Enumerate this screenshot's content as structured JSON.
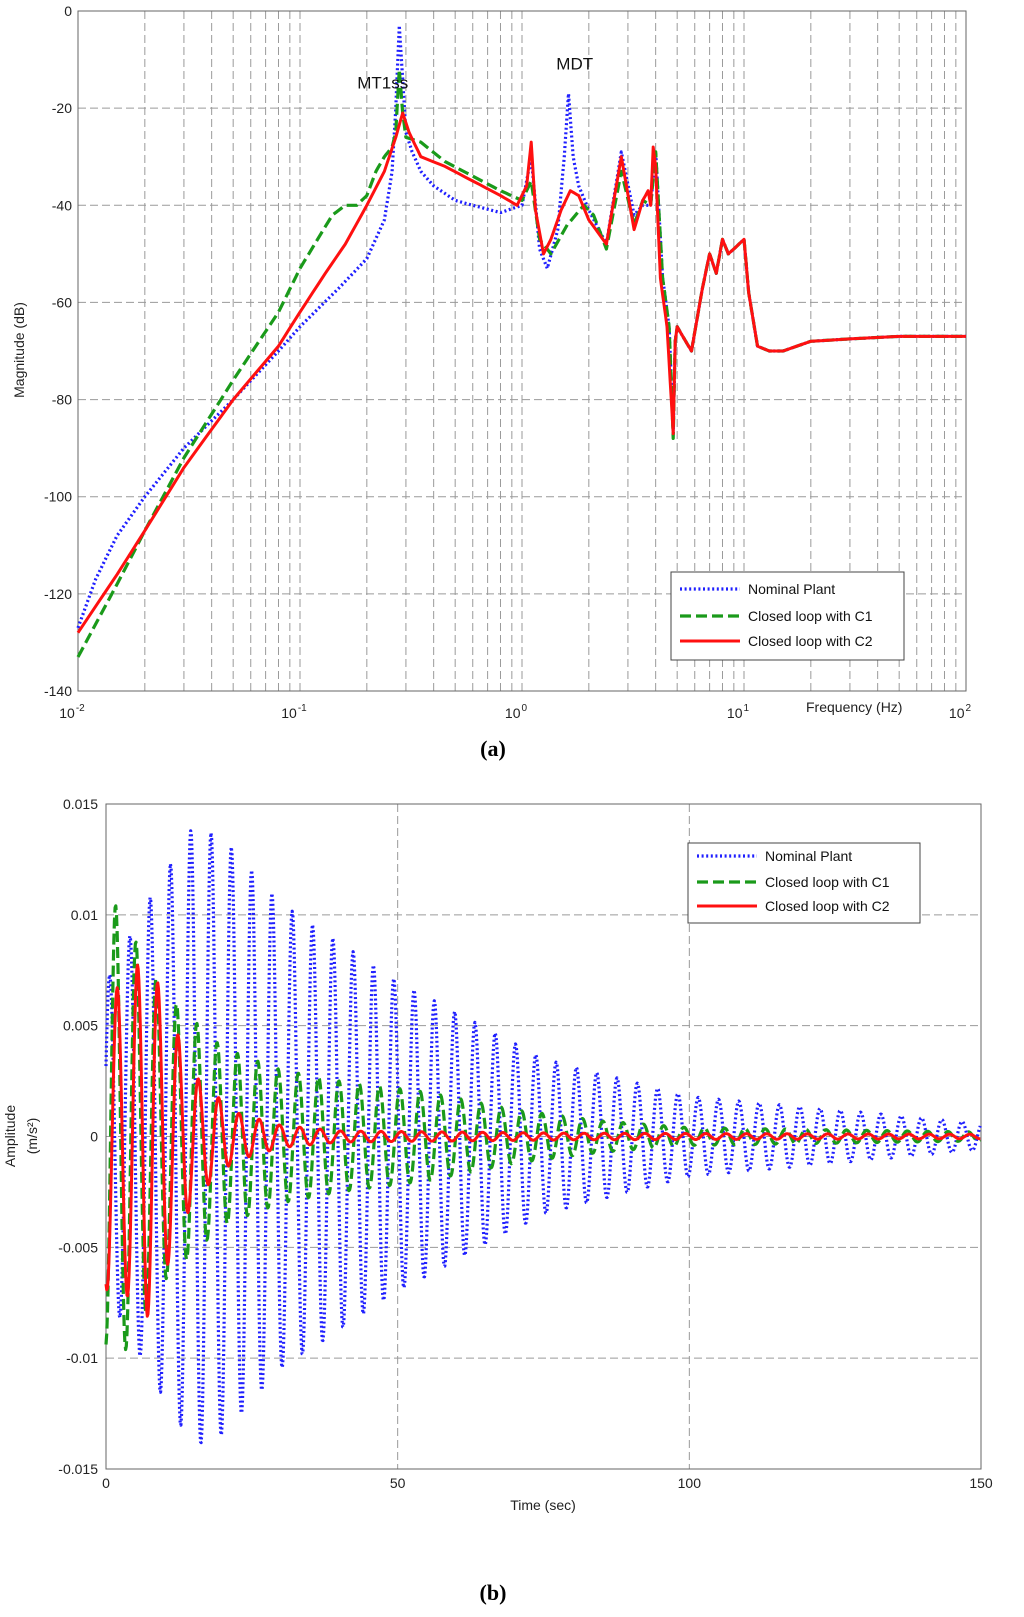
{
  "colors": {
    "nominal": "#1f1fff",
    "c1": "#1a9a1a",
    "c2": "#ff1010"
  },
  "chart_data": [
    {
      "type": "line",
      "panel_label": "(a)",
      "xscale": "log",
      "xlabel": "Frequency  (Hz)",
      "ylabel": "Magnitude (dB)",
      "xlim": [
        0.01,
        100
      ],
      "ylim": [
        -140,
        0
      ],
      "x_ticks": [
        {
          "base": "10",
          "exp": "-2"
        },
        {
          "base": "10",
          "exp": "-1"
        },
        {
          "base": "10",
          "exp": "0"
        },
        {
          "base": "10",
          "exp": "1"
        },
        {
          "base": "10",
          "exp": "2"
        }
      ],
      "y_ticks": [
        "0",
        "-20",
        "-40",
        "-60",
        "-80",
        "-100",
        "-120",
        "-140"
      ],
      "annotations": [
        {
          "text": "MT1ss",
          "x": 0.28,
          "y": -16
        },
        {
          "text": "MDT",
          "x": 1.65,
          "y": -12
        }
      ],
      "legend": {
        "position": "bottom-right",
        "entries": [
          "Nominal Plant",
          "Closed loop with C1",
          "Closed loop with C2"
        ]
      },
      "series": [
        {
          "name": "Nominal Plant",
          "style": "dotted",
          "x": [
            0.01,
            0.012,
            0.015,
            0.02,
            0.03,
            0.05,
            0.08,
            0.1,
            0.15,
            0.2,
            0.24,
            0.26,
            0.27,
            0.28,
            0.29,
            0.3,
            0.32,
            0.35,
            0.4,
            0.5,
            0.6,
            0.8,
            1.0,
            1.1,
            1.2,
            1.3,
            1.45,
            1.55,
            1.62,
            1.7,
            1.8,
            2.0,
            2.4,
            2.8,
            3.2,
            3.5,
            3.8,
            4.0,
            4.3,
            4.6,
            4.8,
            4.9,
            5.0,
            5.3,
            5.8,
            6.5,
            7.0,
            7.5,
            8.0,
            8.5,
            9.0,
            10.0,
            10.5,
            11.5,
            13,
            15,
            20,
            30,
            50,
            100
          ],
          "y": [
            -127,
            -117,
            -108,
            -100,
            -90,
            -80,
            -70,
            -65,
            -57,
            -51,
            -43,
            -33,
            -20,
            -3,
            -14,
            -25,
            -29,
            -33,
            -36,
            -39,
            -40,
            -41.5,
            -40,
            -30,
            -49,
            -53,
            -45,
            -30,
            -17,
            -30,
            -36,
            -41,
            -48,
            -29,
            -42,
            -40,
            -40,
            -29,
            -55,
            -65,
            -87,
            -68,
            -65,
            -67,
            -70,
            -57,
            -50,
            -54,
            -47,
            -50,
            -49,
            -47,
            -58,
            -69,
            -70,
            -70,
            -68,
            -67.5,
            -67,
            -67
          ]
        },
        {
          "name": "Closed loop with C1",
          "style": "dashed",
          "x": [
            0.01,
            0.015,
            0.02,
            0.03,
            0.05,
            0.08,
            0.1,
            0.12,
            0.14,
            0.16,
            0.18,
            0.2,
            0.22,
            0.24,
            0.26,
            0.27,
            0.28,
            0.29,
            0.3,
            0.35,
            0.45,
            0.6,
            0.8,
            1.0,
            1.1,
            1.2,
            1.35,
            1.6,
            1.9,
            2.1,
            2.4,
            2.8,
            3.2,
            3.5,
            3.8,
            4.0,
            4.3,
            4.6,
            4.8,
            4.9,
            5.0,
            5.3,
            5.8,
            6.5,
            7.0,
            7.5,
            8.0,
            8.5,
            9.0,
            10.0,
            10.5,
            11.5,
            13,
            15,
            20,
            30,
            50,
            100
          ],
          "y": [
            -133,
            -118,
            -107,
            -92,
            -76,
            -62,
            -53,
            -47,
            -42,
            -40,
            -40,
            -38,
            -33,
            -30,
            -28,
            -25,
            -12,
            -21,
            -26,
            -27,
            -31,
            -34,
            -37,
            -39,
            -35,
            -47,
            -50,
            -44,
            -40,
            -42,
            -49,
            -33,
            -44,
            -39,
            -40,
            -29,
            -55,
            -65,
            -88,
            -68,
            -65,
            -67,
            -70,
            -57,
            -50,
            -54,
            -47,
            -50,
            -49,
            -47,
            -58,
            -69,
            -70,
            -70,
            -68,
            -67.5,
            -67,
            -67
          ]
        },
        {
          "name": "Closed loop with C2",
          "style": "solid",
          "x": [
            0.01,
            0.015,
            0.02,
            0.03,
            0.05,
            0.08,
            0.1,
            0.13,
            0.16,
            0.2,
            0.24,
            0.27,
            0.29,
            0.31,
            0.35,
            0.45,
            0.6,
            0.8,
            0.95,
            1.05,
            1.1,
            1.15,
            1.25,
            1.35,
            1.5,
            1.65,
            1.8,
            2.0,
            2.4,
            2.8,
            3.2,
            3.5,
            3.7,
            3.8,
            3.9,
            4.0,
            4.2,
            4.5,
            4.8,
            4.9,
            5.0,
            5.3,
            5.8,
            6.5,
            7.0,
            7.5,
            8.0,
            8.5,
            9.0,
            10.0,
            10.5,
            11.5,
            13,
            15,
            20,
            30,
            50,
            100
          ],
          "y": [
            -128,
            -116,
            -107,
            -94,
            -80,
            -69,
            -62,
            -54,
            -48,
            -40,
            -33,
            -26,
            -21,
            -25,
            -30,
            -32,
            -35,
            -38,
            -40,
            -36,
            -27,
            -41,
            -50,
            -47,
            -41,
            -37,
            -38,
            -43,
            -48,
            -30,
            -45,
            -39,
            -37,
            -40,
            -28,
            -32,
            -55,
            -65,
            -87,
            -68,
            -65,
            -67,
            -70,
            -57,
            -50,
            -54,
            -47,
            -50,
            -49,
            -47,
            -58,
            -69,
            -70,
            -70,
            -68,
            -67.5,
            -67,
            -67
          ]
        }
      ]
    },
    {
      "type": "line",
      "panel_label": "(b)",
      "xlabel": "Time (sec)",
      "ylabel": "Amplitude",
      "ylabel_unit": "(m/s²)",
      "xlim": [
        0,
        150
      ],
      "ylim": [
        -0.015,
        0.015
      ],
      "x_ticks": [
        "0",
        "50",
        "100",
        "150"
      ],
      "y_ticks": [
        "0.015",
        "0.01",
        "0.005",
        "0",
        "-0.005",
        "-0.01",
        "-0.015"
      ],
      "legend": {
        "position": "top-right",
        "entries": [
          "Nominal Plant",
          "Closed loop with C1",
          "Closed loop with C2"
        ]
      },
      "series": [
        {
          "name": "Nominal Plant",
          "style": "dotted",
          "model": "damped_oscillation",
          "period_s": 3.48,
          "envelope_time_s": [
            0,
            3,
            8,
            15,
            20,
            30,
            50,
            75,
            100,
            150
          ],
          "envelope": [
            0.007,
            0.0085,
            0.011,
            0.014,
            0.0135,
            0.0105,
            0.007,
            0.0035,
            0.0018,
            0.0006
          ]
        },
        {
          "name": "Closed loop with C1",
          "style": "dashed",
          "model": "damped_oscillation",
          "period_s": 3.48,
          "envelope_time_s": [
            0,
            1.5,
            10,
            20,
            30,
            40,
            55,
            70,
            85,
            100,
            150
          ],
          "envelope": [
            0.0095,
            0.0105,
            0.0065,
            0.004,
            0.003,
            0.0025,
            0.002,
            0.0012,
            0.0007,
            0.0004,
            0.0002
          ]
        },
        {
          "name": "Closed loop with C2",
          "style": "solid",
          "model": "damped_oscillation",
          "period_s": 3.48,
          "envelope_time_s": [
            0,
            1.2,
            7,
            15,
            22,
            30,
            40,
            60,
            80,
            150
          ],
          "envelope": [
            0.007,
            0.0065,
            0.0082,
            0.0028,
            0.0011,
            0.0005,
            0.00025,
            0.0002,
            0.00015,
            0.0001
          ]
        }
      ]
    }
  ]
}
